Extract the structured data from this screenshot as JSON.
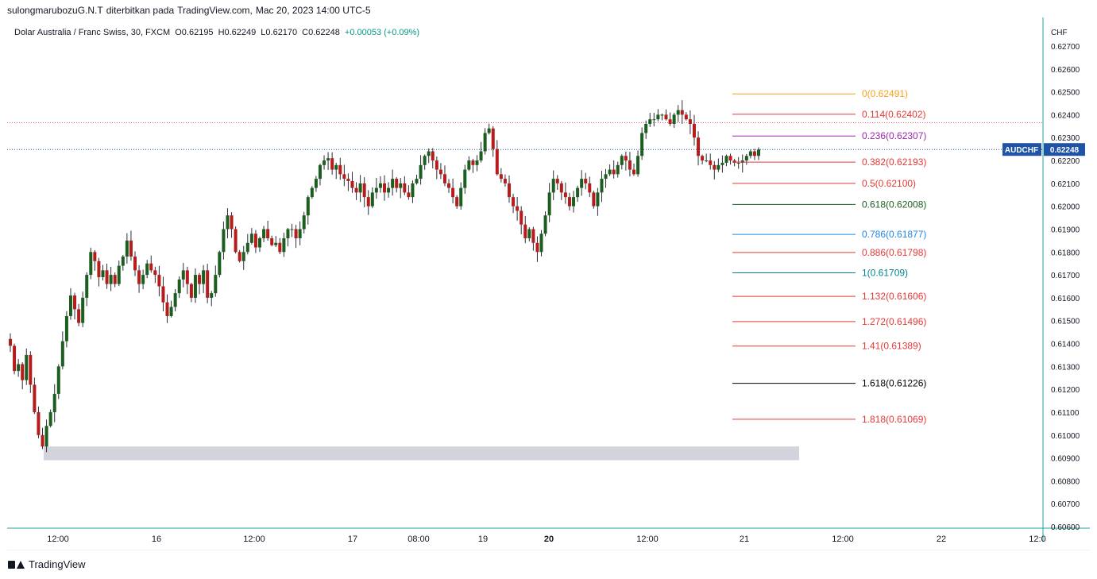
{
  "header": {
    "author": "sulongmarubozuG.N.T",
    "published_text": "diterbitkan pada",
    "site": "TradingView.com,",
    "datetime": "Mac 20, 2023 14:00 UTC-5"
  },
  "legend": {
    "symbol_line": "Dolar Australia / Franc Swiss, 30, FXCM",
    "open": "O0.62195",
    "high": "H0.62249",
    "low": "L0.62170",
    "close": "C0.62248",
    "change": "+0.00053 (+0.09%)"
  },
  "footer": {
    "brand": "TradingView"
  },
  "colors": {
    "up": "#1b5e20",
    "down": "#b71c1c",
    "wick": "#2a2e39",
    "grid_border": "#26a69a",
    "price_badge": "#1e53a5",
    "zone": "#d1d4dc",
    "dotted_red": "#e05a5a",
    "dotted_blue": "#1e53a5"
  },
  "chart_data": {
    "type": "candlestick",
    "currency_label": "CHF",
    "x_tick_labels": [
      "12:00",
      "16",
      "12:00",
      "17",
      "08:00",
      "19",
      "20",
      "12:00",
      "21",
      "12:00",
      "22",
      "12:0"
    ],
    "bold_x_ticks": [
      "20"
    ],
    "y_axis": {
      "min": 0.606,
      "max": 0.627,
      "tick_labels": [
        "0.62700",
        "0.62600",
        "0.62500",
        "0.62400",
        "0.62300",
        "0.62200",
        "0.62100",
        "0.62000",
        "0.61900",
        "0.61800",
        "0.61700",
        "0.61600",
        "0.61500",
        "0.61400",
        "0.61300",
        "0.61200",
        "0.61100",
        "0.61000",
        "0.60900",
        "0.60800",
        "0.60700",
        "0.60600"
      ]
    },
    "current_price": {
      "symbol": "AUDCHF",
      "value": "0.62248"
    },
    "ohlc": {
      "open": 0.62195,
      "high": 0.62249,
      "low": 0.6217,
      "close": 0.62248,
      "change": 0.00053,
      "change_pct": 0.09
    },
    "dotted_levels": [
      0.62365,
      0.62248
    ],
    "support_zone": {
      "low": 0.6089,
      "high": 0.6095
    },
    "fibonacci": [
      {
        "ratio": "0",
        "price": "0.62491",
        "value": 0.62491,
        "color": "#f7a21b"
      },
      {
        "ratio": "0.114",
        "price": "0.62402",
        "value": 0.62402,
        "color": "#e53935"
      },
      {
        "ratio": "0.236",
        "price": "0.62307",
        "value": 0.62307,
        "color": "#9c27b0"
      },
      {
        "ratio": "0.382",
        "price": "0.62193",
        "value": 0.62193,
        "color": "#e53935"
      },
      {
        "ratio": "0.5",
        "price": "0.62100",
        "value": 0.621,
        "color": "#e53935"
      },
      {
        "ratio": "0.618",
        "price": "0.62008",
        "value": 0.62008,
        "color": "#1b5e20"
      },
      {
        "ratio": "0.786",
        "price": "0.61877",
        "value": 0.61877,
        "color": "#1e88e5"
      },
      {
        "ratio": "0.886",
        "price": "0.61798",
        "value": 0.61798,
        "color": "#e53935"
      },
      {
        "ratio": "1",
        "price": "0.61709",
        "value": 0.61709,
        "color": "#00838f"
      },
      {
        "ratio": "1.132",
        "price": "0.61606",
        "value": 0.61606,
        "color": "#e53935"
      },
      {
        "ratio": "1.272",
        "price": "0.61496",
        "value": 0.61496,
        "color": "#e53935"
      },
      {
        "ratio": "1.41",
        "price": "0.61389",
        "value": 0.61389,
        "color": "#e53935"
      },
      {
        "ratio": "1.618",
        "price": "0.61226",
        "value": 0.61226,
        "color": "#000000"
      },
      {
        "ratio": "1.818",
        "price": "0.61069",
        "value": 0.61069,
        "color": "#e53935"
      }
    ],
    "close_path": [
      0.6139,
      0.6128,
      0.6131,
      0.6124,
      0.6135,
      0.6122,
      0.611,
      0.61,
      0.6095,
      0.6104,
      0.611,
      0.6118,
      0.613,
      0.6141,
      0.6152,
      0.6161,
      0.6155,
      0.6149,
      0.616,
      0.617,
      0.618,
      0.6176,
      0.6169,
      0.6172,
      0.6166,
      0.617,
      0.6166,
      0.6174,
      0.6178,
      0.6185,
      0.6178,
      0.6172,
      0.6166,
      0.617,
      0.6175,
      0.6172,
      0.617,
      0.6165,
      0.6158,
      0.6152,
      0.6156,
      0.6162,
      0.6168,
      0.6172,
      0.6166,
      0.616,
      0.617,
      0.6166,
      0.6172,
      0.616,
      0.6162,
      0.617,
      0.618,
      0.619,
      0.6196,
      0.619,
      0.618,
      0.6176,
      0.618,
      0.6184,
      0.6188,
      0.6182,
      0.6186,
      0.619,
      0.6186,
      0.6183,
      0.6184,
      0.618,
      0.6186,
      0.619,
      0.619,
      0.6186,
      0.619,
      0.6196,
      0.6204,
      0.6208,
      0.6212,
      0.6218,
      0.622,
      0.6221,
      0.6216,
      0.6218,
      0.6214,
      0.6212,
      0.6211,
      0.6208,
      0.6206,
      0.621,
      0.6204,
      0.62,
      0.6206,
      0.6208,
      0.621,
      0.6206,
      0.6208,
      0.6212,
      0.6208,
      0.621,
      0.6206,
      0.6204,
      0.621,
      0.6212,
      0.6218,
      0.6222,
      0.6224,
      0.622,
      0.6216,
      0.6214,
      0.621,
      0.6208,
      0.6204,
      0.62,
      0.6208,
      0.6216,
      0.622,
      0.6218,
      0.622,
      0.6224,
      0.6232,
      0.6234,
      0.6225,
      0.6214,
      0.6212,
      0.621,
      0.6204,
      0.62,
      0.6198,
      0.6192,
      0.6186,
      0.619,
      0.6184,
      0.618,
      0.6188,
      0.6196,
      0.6206,
      0.6212,
      0.621,
      0.6206,
      0.6204,
      0.62,
      0.6204,
      0.6208,
      0.6212,
      0.621,
      0.6206,
      0.62,
      0.6206,
      0.6212,
      0.6214,
      0.6216,
      0.6214,
      0.6218,
      0.6222,
      0.622,
      0.6216,
      0.6214,
      0.6222,
      0.6232,
      0.6236,
      0.6238,
      0.6238,
      0.624,
      0.624,
      0.6238,
      0.6236,
      0.624,
      0.6242,
      0.624,
      0.6238,
      0.6236,
      0.623,
      0.6222,
      0.622,
      0.622,
      0.6218,
      0.6216,
      0.6218,
      0.6219,
      0.6222,
      0.622,
      0.6219,
      0.6219,
      0.622,
      0.6222,
      0.6224,
      0.6222,
      0.62248
    ]
  }
}
